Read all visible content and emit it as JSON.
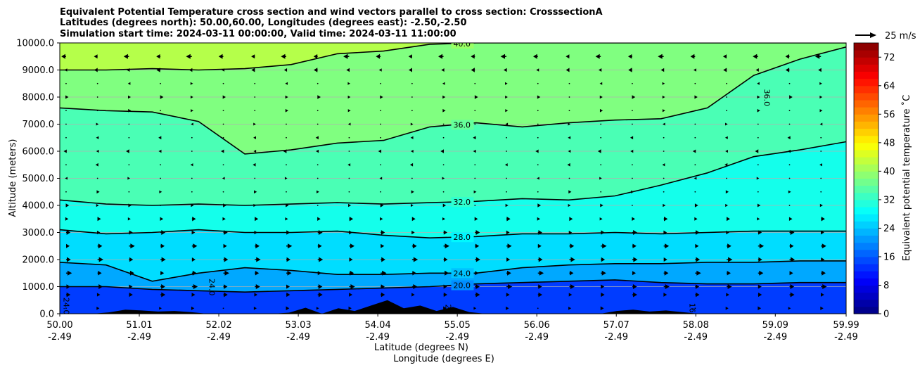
{
  "chart_data": {
    "type": "heatmap",
    "title_lines": [
      "Equivalent Potential Temperature cross section and wind vectors parallel to cross section: CrosssectionA",
      "Latitudes (degrees north): 50.00,60.00, Longitudes (degrees east): -2.50,-2.50",
      "Simulation start time: 2024-03-11 00:00:00, Valid time: 2024-03-11 11:00:00"
    ],
    "ylabel": "Altitude (meters)",
    "xlabel_lines": [
      "Latitude (degrees N)",
      "Longitude (degrees E)"
    ],
    "ylim": [
      0,
      10000
    ],
    "xlim": [
      50.0,
      59.99
    ],
    "y_ticks": [
      {
        "value": 0,
        "label": "0.0"
      },
      {
        "value": 1000,
        "label": "1000.0"
      },
      {
        "value": 2000,
        "label": "2000.0"
      },
      {
        "value": 3000,
        "label": "3000.0"
      },
      {
        "value": 4000,
        "label": "4000.0"
      },
      {
        "value": 5000,
        "label": "5000.0"
      },
      {
        "value": 6000,
        "label": "6000.0"
      },
      {
        "value": 7000,
        "label": "7000.0"
      },
      {
        "value": 8000,
        "label": "8000.0"
      },
      {
        "value": 9000,
        "label": "9000.0"
      },
      {
        "value": 10000,
        "label": "10000.0"
      }
    ],
    "x_ticks": [
      {
        "value": 50.0,
        "lat": "50.00",
        "lon": "-2.49"
      },
      {
        "value": 51.01,
        "lat": "51.01",
        "lon": "-2.49"
      },
      {
        "value": 52.02,
        "lat": "52.02",
        "lon": "-2.49"
      },
      {
        "value": 53.03,
        "lat": "53.03",
        "lon": "-2.49"
      },
      {
        "value": 54.04,
        "lat": "54.04",
        "lon": "-2.49"
      },
      {
        "value": 55.05,
        "lat": "55.05",
        "lon": "-2.49"
      },
      {
        "value": 56.06,
        "lat": "56.06",
        "lon": "-2.49"
      },
      {
        "value": 57.07,
        "lat": "57.07",
        "lon": "-2.49"
      },
      {
        "value": 58.08,
        "lat": "58.08",
        "lon": "-2.49"
      },
      {
        "value": 59.09,
        "lat": "59.09",
        "lon": "-2.49"
      },
      {
        "value": 59.99,
        "lat": "59.99",
        "lon": "-2.49"
      }
    ],
    "grid": "horizontal",
    "colorbar": {
      "label": "Equivalent potential temperature ˚C",
      "min": 0,
      "max": 76,
      "step": 2,
      "ticks": [
        0,
        8,
        16,
        24,
        32,
        40,
        48,
        56,
        64,
        72
      ]
    },
    "contours": [
      {
        "level": "20.0",
        "z": [
          1000,
          1000,
          900,
          850,
          800,
          850,
          900,
          950,
          1000,
          1100,
          1150,
          1200,
          1250,
          1150,
          1100,
          1100,
          1150,
          1150
        ],
        "labels": [
          {
            "x": 55.0,
            "text": "20.0"
          }
        ]
      },
      {
        "level": "24.0",
        "z": [
          1900,
          1800,
          1200,
          1500,
          1700,
          1600,
          1450,
          1450,
          1500,
          1500,
          1700,
          1800,
          1850,
          1850,
          1900,
          1900,
          1950,
          1950
        ],
        "labels": [
          {
            "x": 55.0,
            "text": "24.0"
          }
        ]
      },
      {
        "level": "28.0",
        "z": [
          3100,
          2950,
          3000,
          3100,
          3000,
          3000,
          3050,
          2900,
          2800,
          2850,
          2950,
          2950,
          3000,
          2950,
          3000,
          3050,
          3050,
          3050
        ],
        "labels": [
          {
            "x": 55.0,
            "text": "28.0"
          }
        ]
      },
      {
        "level": "32.0",
        "z": [
          4200,
          4050,
          4000,
          4050,
          4000,
          4050,
          4100,
          4050,
          4100,
          4150,
          4250,
          4200,
          4350,
          4750,
          5200,
          5800,
          6050,
          6350
        ],
        "labels": [
          {
            "x": 55.0,
            "text": "32.0"
          }
        ]
      },
      {
        "level": "36.0",
        "z": [
          7600,
          7500,
          7450,
          7100,
          5900,
          6050,
          6300,
          6400,
          6900,
          7050,
          6900,
          7050,
          7150,
          7200,
          7600,
          8800,
          9400,
          9850
        ],
        "labels": [
          {
            "x": 55.0,
            "text": "36.0"
          }
        ]
      },
      {
        "level": "40.0",
        "z": [
          9000,
          9000,
          9050,
          9000,
          9050,
          9200,
          9600,
          9700,
          9950,
          10000,
          10000,
          10000,
          10000,
          10000,
          10000,
          10000,
          10000,
          10000
        ],
        "labels": [
          {
            "x": 55.0,
            "text": "40.0"
          }
        ]
      }
    ],
    "extra_contour_labels": [
      {
        "x": 51.9,
        "y": 1300,
        "text": "24.0"
      },
      {
        "x": 50.05,
        "y": 600,
        "text": "24.0"
      },
      {
        "x": 58.95,
        "y": 8300,
        "text": "36.0"
      },
      {
        "x": 53.8,
        "y": 100,
        "text": "20.0"
      },
      {
        "x": 54.9,
        "y": 350,
        "text": "20.0"
      },
      {
        "x": 58.0,
        "y": 400,
        "text": "16.0"
      }
    ],
    "wind": {
      "reference_label": "25 m/s",
      "reference_speed": 25,
      "rows_z": [
        200,
        700,
        1000,
        1500,
        2000,
        2500,
        3000,
        3500,
        4000,
        4500,
        5000,
        5500,
        6000,
        6500,
        7000,
        7500,
        8000,
        8500,
        9000,
        9500
      ],
      "row_u": [
        2,
        4,
        5,
        5,
        5,
        5,
        4,
        3,
        2,
        1,
        0,
        -1,
        -2,
        -1,
        0,
        1,
        2,
        0,
        -3,
        -5
      ]
    },
    "terrain_z": [
      0,
      0,
      0,
      50,
      150,
      120,
      80,
      100,
      60,
      0,
      0,
      0,
      0,
      0,
      40,
      220,
      0,
      200,
      100,
      300,
      500,
      200,
      300,
      100,
      250,
      60,
      0,
      0,
      0,
      0,
      0,
      0,
      0,
      0,
      100,
      150,
      80,
      120,
      60,
      0,
      0,
      0,
      0,
      0,
      0,
      0,
      0,
      0,
      0
    ]
  }
}
